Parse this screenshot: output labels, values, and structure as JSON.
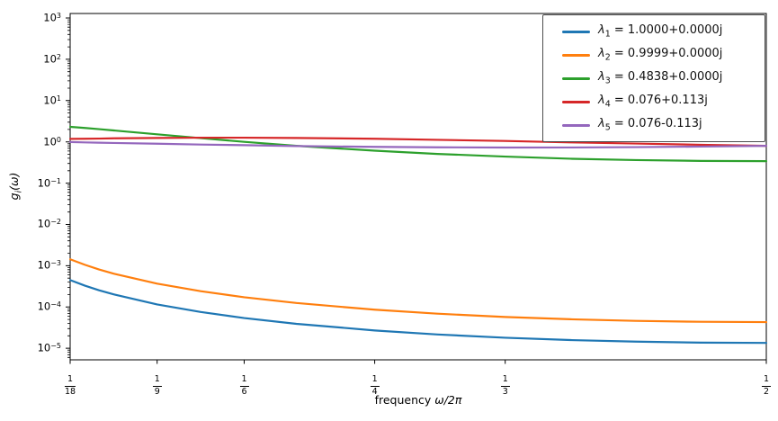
{
  "chart_data": {
    "type": "line",
    "title": "",
    "grid": false,
    "x_axis": {
      "label": "frequency ω/2π",
      "label_prefix": "frequency ",
      "label_math": "ω/2π",
      "scale": "linear",
      "min": 0.055556,
      "max": 0.5,
      "tick_values": [
        0.055556,
        0.111111,
        0.166667,
        0.25,
        0.333333,
        0.5
      ],
      "tick_labels": [
        "1/18",
        "1/9",
        "1/6",
        "1/4",
        "1/3",
        "1/2"
      ],
      "tick_fractions": [
        {
          "num": "1",
          "den": "18"
        },
        {
          "num": "1",
          "den": "9"
        },
        {
          "num": "1",
          "den": "6"
        },
        {
          "num": "1",
          "den": "4"
        },
        {
          "num": "1",
          "den": "3"
        },
        {
          "num": "1",
          "den": "2"
        }
      ]
    },
    "y_axis": {
      "label": "gᵢ(ω)",
      "label_sym": "g",
      "label_sub": "i",
      "label_rest": "(ω)",
      "scale": "log",
      "lim_log10": [
        -5.28,
        3.109
      ],
      "tick_base": "10",
      "tick_exponents": [
        3,
        2,
        1,
        0,
        -1,
        -2,
        -3,
        -4,
        -5
      ],
      "tick_exp_display": [
        "3",
        "2",
        "1",
        "0",
        "−1",
        "−2",
        "−3",
        "−4",
        "−5"
      ]
    },
    "legend": {
      "position": "upper right"
    },
    "x": [
      0.0556,
      0.065,
      0.074,
      0.0833,
      0.1111,
      0.1389,
      0.1667,
      0.2,
      0.25,
      0.29,
      0.3333,
      0.375,
      0.4167,
      0.4583,
      0.5
    ],
    "series": [
      {
        "name": "lambda_1",
        "label": "λ₁ = 1.0000+0.0000j",
        "label_sym": "λ",
        "label_sub": "1",
        "label_rhs": "= 1.0000+0.0000j",
        "color": "#1f77b4",
        "values": [
          0.000448,
          0.000328,
          0.000254,
          0.000202,
          0.000115,
          7.56e-05,
          5.4e-05,
          3.91e-05,
          2.7e-05,
          2.16e-05,
          1.8e-05,
          1.58e-05,
          1.45e-05,
          1.37e-05,
          1.35e-05
        ]
      },
      {
        "name": "lambda_2",
        "label": "λ₂ = 0.9999+0.0000j",
        "label_sym": "λ",
        "label_sub": "2",
        "label_rhs": "= 0.9999+0.0000j",
        "color": "#ff7f0e",
        "values": [
          0.00143,
          0.00105,
          0.00081,
          0.000642,
          0.000368,
          0.000241,
          0.000172,
          0.000125,
          8.6e-05,
          6.89e-05,
          5.73e-05,
          5.04e-05,
          4.61e-05,
          4.38e-05,
          4.3e-05
        ]
      },
      {
        "name": "lambda_3",
        "label": "λ₃ = 0.4838+0.0000j",
        "label_sym": "λ",
        "label_sub": "3",
        "label_rhs": "= 0.4838+0.0000j",
        "color": "#2ca02c",
        "values": [
          2.31,
          2.17,
          2.03,
          1.89,
          1.52,
          1.23,
          1.0,
          0.8,
          0.61,
          0.51,
          0.44,
          0.39,
          0.362,
          0.346,
          0.341
        ]
      },
      {
        "name": "lambda_4",
        "label": "λ₄ = 0.076+0.113j",
        "label_sym": "λ",
        "label_sub": "4",
        "label_rhs": "= 0.076+0.113j",
        "color": "#d62728",
        "values": [
          1.18,
          1.19,
          1.2,
          1.22,
          1.24,
          1.26,
          1.26,
          1.24,
          1.19,
          1.12,
          1.05,
          0.97,
          0.91,
          0.85,
          0.8
        ]
      },
      {
        "name": "lambda_5",
        "label": "λ₅ = 0.076-0.113j",
        "label_sym": "λ",
        "label_sub": "5",
        "label_rhs": "= 0.076-0.113j",
        "color": "#9467bd",
        "values": [
          0.99,
          0.97,
          0.955,
          0.94,
          0.9,
          0.86,
          0.83,
          0.79,
          0.755,
          0.737,
          0.729,
          0.731,
          0.744,
          0.768,
          0.8
        ]
      }
    ]
  }
}
